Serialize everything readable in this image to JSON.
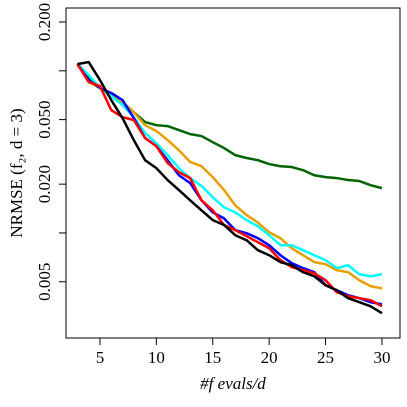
{
  "chart_data": {
    "type": "line",
    "x_label": "#f evals/d",
    "y_label": "NRMSE (f₂, d = 3)",
    "log_y": true,
    "x": [
      3,
      4,
      5,
      6,
      7,
      8,
      9,
      10,
      11,
      12,
      13,
      14,
      15,
      16,
      17,
      18,
      19,
      20,
      21,
      22,
      23,
      24,
      25,
      26,
      27,
      28,
      29,
      30
    ],
    "series": [
      {
        "color": "#006400",
        "values": [
          0.11,
          0.0902,
          0.0783,
          0.0709,
          0.0641,
          0.0556,
          0.0483,
          0.0462,
          0.0456,
          0.0431,
          0.0407,
          0.0396,
          0.0363,
          0.0334,
          0.0302,
          0.029,
          0.0281,
          0.0266,
          0.0258,
          0.0255,
          0.0244,
          0.0227,
          0.0221,
          0.0218,
          0.0212,
          0.0209,
          0.0197,
          0.0189
        ]
      },
      {
        "color": "#e69f00",
        "values": [
          0.11,
          0.0853,
          0.0783,
          0.0709,
          0.0641,
          0.0556,
          0.0462,
          0.0425,
          0.0374,
          0.0324,
          0.0274,
          0.0258,
          0.0221,
          0.0184,
          0.0148,
          0.0129,
          0.0116,
          0.0101,
          0.00929,
          0.00805,
          0.00729,
          0.00661,
          0.00642,
          0.00589,
          0.00573,
          0.00511,
          0.00469,
          0.00456
        ]
      },
      {
        "color": "#00ffff",
        "values": [
          0.11,
          0.0942,
          0.0783,
          0.0698,
          0.0615,
          0.0518,
          0.0413,
          0.0358,
          0.0302,
          0.0251,
          0.0218,
          0.0195,
          0.0166,
          0.0144,
          0.0134,
          0.012,
          0.011,
          0.00968,
          0.0084,
          0.0084,
          0.00783,
          0.00729,
          0.0068,
          0.00607,
          0.00633,
          0.00556,
          0.00541,
          0.00556
        ]
      },
      {
        "color": "#0000ff",
        "values": [
          0.11,
          0.0877,
          0.0783,
          0.073,
          0.066,
          0.0511,
          0.0385,
          0.0343,
          0.0281,
          0.0227,
          0.0203,
          0.0159,
          0.0134,
          0.0123,
          0.0104,
          0.00997,
          0.00929,
          0.0084,
          0.00729,
          0.00651,
          0.00607,
          0.00573,
          0.00476,
          0.00443,
          0.00413,
          0.00396,
          0.00374,
          0.00363
        ]
      },
      {
        "color": "#ff0000",
        "values": [
          0.11,
          0.0853,
          0.0805,
          0.0573,
          0.0518,
          0.0497,
          0.0385,
          0.0343,
          0.027,
          0.0237,
          0.0218,
          0.0159,
          0.0138,
          0.0112,
          0.0104,
          0.00955,
          0.00877,
          0.00805,
          0.0068,
          0.00615,
          0.00589,
          0.00565,
          0.00511,
          0.00431,
          0.00407,
          0.00396,
          0.00385,
          0.00353
        ]
      },
      {
        "color": "#000000",
        "values": [
          0.11,
          0.1132,
          0.0877,
          0.066,
          0.0511,
          0.0374,
          0.0281,
          0.0251,
          0.0212,
          0.0184,
          0.0159,
          0.0138,
          0.012,
          0.0112,
          0.00968,
          0.00902,
          0.00783,
          0.00729,
          0.00661,
          0.00633,
          0.00573,
          0.00541,
          0.00476,
          0.00443,
          0.00396,
          0.00374,
          0.00353,
          0.0032
        ]
      }
    ],
    "xlim": [
      1.99,
      31.6
    ],
    "xticks": [
      5,
      10,
      15,
      20,
      25,
      30
    ],
    "ylim": [
      0.00225,
      0.244
    ],
    "yticks": [
      {
        "value": 0.2,
        "label": "0.200"
      },
      {
        "value": 0.05,
        "label": "0.050"
      },
      {
        "value": 0.02,
        "label": "0.020"
      },
      {
        "value": 0.005,
        "label": "0.005"
      }
    ],
    "yminor_ticks": [
      0.1,
      0.01
    ]
  }
}
